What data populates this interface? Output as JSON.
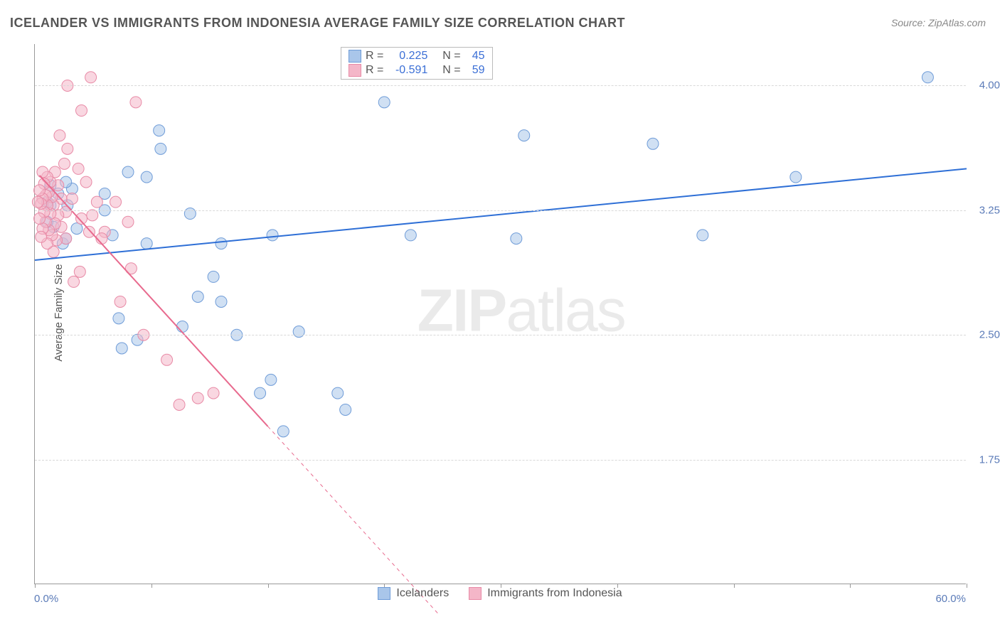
{
  "title": "ICELANDER VS IMMIGRANTS FROM INDONESIA AVERAGE FAMILY SIZE CORRELATION CHART",
  "source_label": "Source: ZipAtlas.com",
  "watermark_zip": "ZIP",
  "watermark_rest": "atlas",
  "y_axis_title": "Average Family Size",
  "x_min_label": "0.0%",
  "x_max_label": "60.0%",
  "chart": {
    "type": "scatter",
    "xlim": [
      0,
      60
    ],
    "ylim": [
      1.0,
      4.25
    ],
    "y_ticks": [
      1.75,
      2.5,
      3.25,
      4.0
    ],
    "y_tick_labels": [
      "1.75",
      "2.50",
      "3.25",
      "4.00"
    ],
    "x_ticks": [
      0,
      7.5,
      15,
      22.5,
      30,
      37.5,
      45,
      52.5,
      60
    ],
    "background_color": "#ffffff",
    "grid_color": "#d8d8d8",
    "axis_color": "#999999",
    "tick_label_color": "#5b7bb8",
    "marker_radius": 8,
    "marker_opacity": 0.55,
    "series": [
      {
        "name": "Icelanders",
        "color_fill": "#a9c6ea",
        "color_stroke": "#6f9cd8",
        "r_value": "0.225",
        "n_value": "45",
        "regression": {
          "x1": 0,
          "y1": 2.95,
          "x2": 60,
          "y2": 3.5,
          "color": "#2e6fd6",
          "width": 2
        },
        "points": [
          [
            57.5,
            4.05
          ],
          [
            49.0,
            3.45
          ],
          [
            43.0,
            3.1
          ],
          [
            39.8,
            3.65
          ],
          [
            31.0,
            3.08
          ],
          [
            31.5,
            3.7
          ],
          [
            24.2,
            3.1
          ],
          [
            22.5,
            3.9
          ],
          [
            20.0,
            2.05
          ],
          [
            19.5,
            2.15
          ],
          [
            17.0,
            2.52
          ],
          [
            16.0,
            1.92
          ],
          [
            15.2,
            2.23
          ],
          [
            14.5,
            2.15
          ],
          [
            13.0,
            2.5
          ],
          [
            15.3,
            3.1
          ],
          [
            12.0,
            2.7
          ],
          [
            12.0,
            3.05
          ],
          [
            11.5,
            2.85
          ],
          [
            10.5,
            2.73
          ],
          [
            10.0,
            3.23
          ],
          [
            9.5,
            2.55
          ],
          [
            8.0,
            3.73
          ],
          [
            8.1,
            3.62
          ],
          [
            7.2,
            3.05
          ],
          [
            7.2,
            3.45
          ],
          [
            6.6,
            2.47
          ],
          [
            6.0,
            3.48
          ],
          [
            5.4,
            2.6
          ],
          [
            5.6,
            2.42
          ],
          [
            5.0,
            3.1
          ],
          [
            4.5,
            3.25
          ],
          [
            4.5,
            3.35
          ],
          [
            2.7,
            3.14
          ],
          [
            2.4,
            3.38
          ],
          [
            2.1,
            3.28
          ],
          [
            1.8,
            3.05
          ],
          [
            2.0,
            3.42
          ],
          [
            2.0,
            3.08
          ],
          [
            1.5,
            3.35
          ],
          [
            1.2,
            3.15
          ],
          [
            1.0,
            3.28
          ],
          [
            1.0,
            3.4
          ],
          [
            0.8,
            3.18
          ],
          [
            0.8,
            3.3
          ]
        ]
      },
      {
        "name": "Immigrants from Indonesia",
        "color_fill": "#f4b6c8",
        "color_stroke": "#e88aa6",
        "r_value": "-0.591",
        "n_value": "59",
        "regression": {
          "x1": 0.3,
          "y1": 3.46,
          "x2": 15.0,
          "y2": 1.95,
          "color": "#e86a8e",
          "width": 2,
          "dashed_ext_x": 26.0,
          "dashed_ext_y": 0.82
        },
        "points": [
          [
            11.5,
            2.15
          ],
          [
            10.5,
            2.12
          ],
          [
            9.3,
            2.08
          ],
          [
            8.5,
            2.35
          ],
          [
            7.0,
            2.5
          ],
          [
            6.2,
            2.9
          ],
          [
            6.0,
            3.18
          ],
          [
            5.5,
            2.7
          ],
          [
            5.2,
            3.3
          ],
          [
            4.5,
            3.12
          ],
          [
            6.5,
            3.9
          ],
          [
            4.3,
            3.08
          ],
          [
            4.0,
            3.3
          ],
          [
            3.7,
            3.22
          ],
          [
            3.5,
            3.12
          ],
          [
            3.3,
            3.42
          ],
          [
            3.6,
            4.05
          ],
          [
            3.0,
            3.85
          ],
          [
            3.0,
            3.2
          ],
          [
            2.9,
            2.88
          ],
          [
            2.5,
            2.82
          ],
          [
            2.8,
            3.5
          ],
          [
            2.4,
            3.32
          ],
          [
            2.1,
            3.62
          ],
          [
            2.1,
            4.0
          ],
          [
            2.0,
            3.24
          ],
          [
            2.0,
            3.08
          ],
          [
            1.9,
            3.53
          ],
          [
            1.7,
            3.15
          ],
          [
            1.7,
            3.32
          ],
          [
            1.6,
            3.7
          ],
          [
            1.5,
            3.22
          ],
          [
            1.5,
            3.4
          ],
          [
            1.4,
            3.07
          ],
          [
            1.3,
            3.48
          ],
          [
            1.3,
            3.17
          ],
          [
            1.2,
            3.28
          ],
          [
            1.2,
            3.0
          ],
          [
            1.1,
            3.33
          ],
          [
            1.1,
            3.1
          ],
          [
            1.0,
            3.42
          ],
          [
            1.0,
            3.23
          ],
          [
            0.9,
            3.36
          ],
          [
            0.9,
            3.13
          ],
          [
            0.8,
            3.28
          ],
          [
            0.8,
            3.45
          ],
          [
            0.8,
            3.05
          ],
          [
            0.7,
            3.34
          ],
          [
            0.7,
            3.18
          ],
          [
            0.6,
            3.41
          ],
          [
            0.6,
            3.24
          ],
          [
            0.5,
            3.32
          ],
          [
            0.5,
            3.14
          ],
          [
            0.5,
            3.48
          ],
          [
            0.4,
            3.29
          ],
          [
            0.4,
            3.09
          ],
          [
            0.3,
            3.37
          ],
          [
            0.3,
            3.2
          ],
          [
            0.2,
            3.3
          ]
        ]
      }
    ]
  },
  "legend_labels": {
    "r": "R =",
    "n": "N ="
  },
  "bottom_legend": [
    {
      "label": "Icelanders",
      "fill": "#a9c6ea",
      "stroke": "#6f9cd8"
    },
    {
      "label": "Immigrants from Indonesia",
      "fill": "#f4b6c8",
      "stroke": "#e88aa6"
    }
  ]
}
